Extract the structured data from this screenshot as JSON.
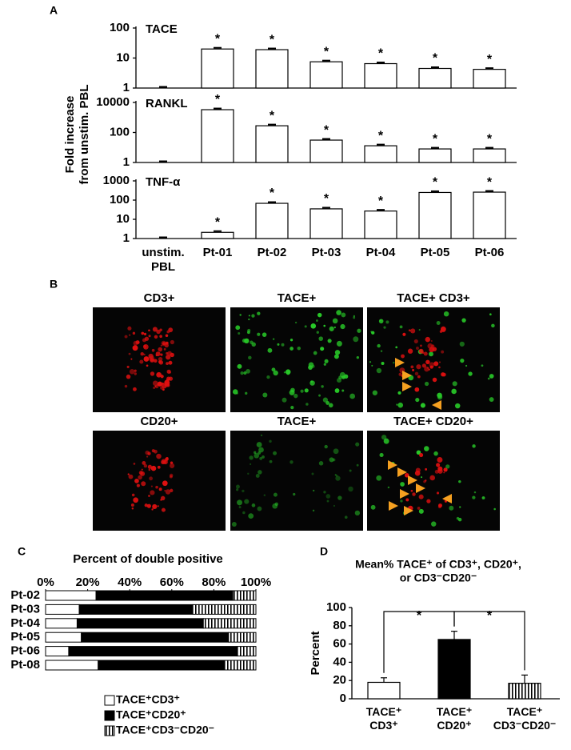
{
  "panel_labels": [
    "A",
    "B",
    "C",
    "D"
  ],
  "chart_data": [
    {
      "type": "bar",
      "title": "TACE",
      "y_label": "Fold increase\nfrom unstim. PBL",
      "values": [
        1,
        20,
        19,
        7.5,
        6.5,
        4.5,
        4.2
      ],
      "annotations": [
        null,
        "*",
        "*",
        "*",
        "*",
        "*",
        "*"
      ],
      "color": "#ffffff",
      "log_scale": true,
      "ylim": [
        1,
        100
      ],
      "yticks": [
        1,
        10,
        100
      ]
    },
    {
      "type": "bar",
      "title": "RANKL",
      "values": [
        1,
        3300,
        280,
        31,
        13,
        8,
        8
      ],
      "annotations": [
        null,
        "*",
        "*",
        "*",
        "*",
        "*",
        "*"
      ],
      "color": "#ffffff",
      "log_scale": true,
      "ylim": [
        1,
        10000
      ],
      "yticks": [
        1,
        100,
        10000
      ]
    },
    {
      "type": "bar",
      "title": "TNF-α",
      "categories": [
        "unstim.\nPBL",
        "Pt-01",
        "Pt-02",
        "Pt-03",
        "Pt-04",
        "Pt-05",
        "Pt-06"
      ],
      "values": [
        1,
        2.1,
        68,
        35,
        27,
        250,
        260
      ],
      "annotations": [
        null,
        "*",
        "*",
        "*",
        "*",
        "*",
        "*"
      ],
      "color": "#ffffff",
      "log_scale": true,
      "ylim": [
        1,
        1000
      ],
      "yticks": [
        1,
        10,
        100,
        1000
      ]
    },
    {
      "type": "stacked_barh",
      "title": "Percent of double positive",
      "categories": [
        "Pt-02",
        "Pt-03",
        "Pt-04",
        "Pt-05",
        "Pt-06",
        "Pt-08"
      ],
      "series": [
        {
          "name": "TACE⁺CD3⁺",
          "color": "#ffffff",
          "values": [
            24,
            16,
            15,
            17,
            11,
            25
          ]
        },
        {
          "name": "TACE⁺CD20⁺",
          "color": "#000000",
          "values": [
            65,
            54,
            60,
            70,
            80,
            60
          ]
        },
        {
          "name": "TACE⁺CD3⁻CD20⁻",
          "color": "stripes",
          "values": [
            11,
            30,
            25,
            13,
            9,
            15
          ]
        }
      ],
      "xlim": [
        0,
        100
      ],
      "xticks": [
        {
          "value": 0,
          "label": "0%"
        },
        {
          "value": 20,
          "label": "20%"
        },
        {
          "value": 40,
          "label": "40%"
        },
        {
          "value": 60,
          "label": "60%"
        },
        {
          "value": 80,
          "label": "80%"
        },
        {
          "value": 100,
          "label": "100%"
        }
      ]
    },
    {
      "type": "bar",
      "title": "Mean% TACE⁺ of CD3⁺, CD20⁺,\nor CD3⁻CD20⁻",
      "y_label": "Percent",
      "categories": [
        "TACE⁺\nCD3⁺",
        "TACE⁺\nCD20⁺",
        "TACE⁺\nCD3⁻CD20⁻"
      ],
      "values": [
        18,
        65,
        17
      ],
      "errors": [
        5,
        9,
        9
      ],
      "colors": [
        "#ffffff",
        "#000000",
        "stripes"
      ],
      "ylim": [
        0,
        100
      ],
      "yticks": [
        0,
        20,
        40,
        60,
        80,
        100
      ],
      "brackets": [
        "*",
        "*"
      ]
    }
  ],
  "images": {
    "rows": [
      {
        "titles": [
          "CD3+",
          "TACE+",
          "TACE+ CD3+"
        ]
      },
      {
        "titles": [
          "CD20+",
          "TACE+",
          "TACE+ CD20+"
        ]
      }
    ]
  }
}
